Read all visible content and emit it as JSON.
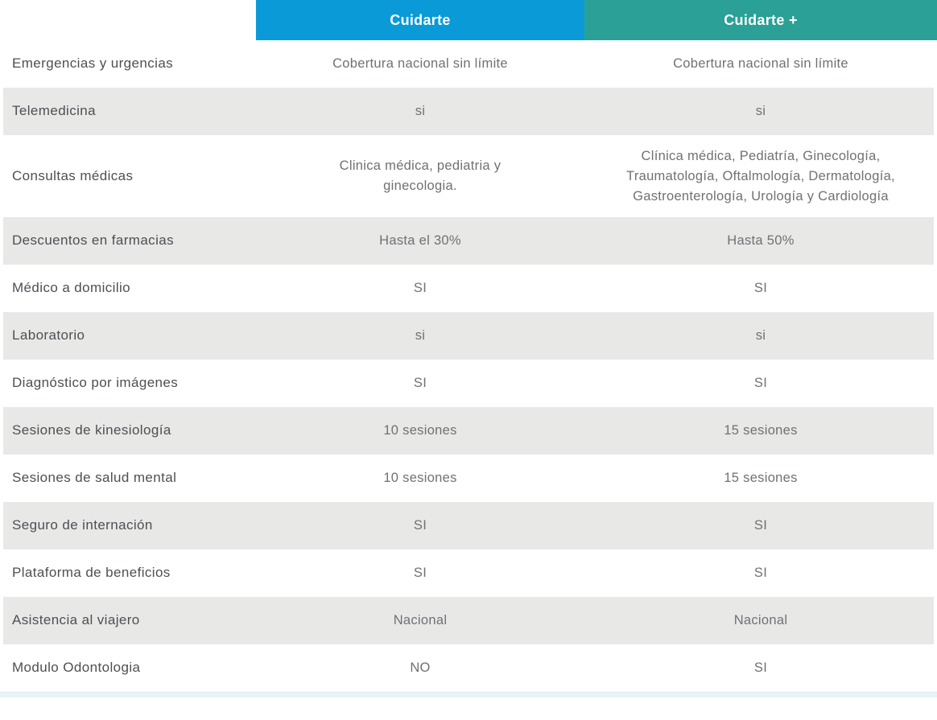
{
  "colors": {
    "cuidarte_header_bg": "#0a9ad8",
    "cuidarte_plus_header_bg": "#2aa096",
    "header_text": "#ffffff",
    "row_alt_bg": "#e8e8e7",
    "label_text": "#4e4f54",
    "value_text": "#6f7175",
    "bottom_strip_bg": "#e9f3fa"
  },
  "table": {
    "columns": [
      {
        "label": "Cuidarte",
        "color": "#0a9ad8"
      },
      {
        "label": "Cuidarte +",
        "color": "#2aa096"
      }
    ],
    "rows": [
      {
        "feature": "Emergencias y urgencias",
        "cuidarte": "Cobertura nacional sin límite",
        "cuidarte_plus": "Cobertura nacional sin límite"
      },
      {
        "feature": "Telemedicina",
        "cuidarte": "si",
        "cuidarte_plus": "si"
      },
      {
        "feature": "Consultas médicas",
        "cuidarte": "Clinica médica, pediatria y ginecologia.",
        "cuidarte_plus": "Clínica médica, Pediatría, Ginecología, Traumatología, Oftalmología, Dermatología, Gastroenterología, Urología y Cardiología"
      },
      {
        "feature": "Descuentos en farmacias",
        "cuidarte": "Hasta el 30%",
        "cuidarte_plus": "Hasta 50%"
      },
      {
        "feature": "Médico a domicilio",
        "cuidarte": "SI",
        "cuidarte_plus": "SI"
      },
      {
        "feature": "Laboratorio",
        "cuidarte": "si",
        "cuidarte_plus": "si"
      },
      {
        "feature": "Diagnóstico por imágenes",
        "cuidarte": "SI",
        "cuidarte_plus": "SI"
      },
      {
        "feature": "Sesiones de kinesiología",
        "cuidarte": "10 sesiones",
        "cuidarte_plus": "15 sesiones"
      },
      {
        "feature": "Sesiones de salud mental",
        "cuidarte": "10 sesiones",
        "cuidarte_plus": "15 sesiones"
      },
      {
        "feature": "Seguro de internación",
        "cuidarte": "SI",
        "cuidarte_plus": "SI"
      },
      {
        "feature": "Plataforma de beneficios",
        "cuidarte": "SI",
        "cuidarte_plus": "SI"
      },
      {
        "feature": "Asistencia al viajero",
        "cuidarte": "Nacional",
        "cuidarte_plus": "Nacional"
      },
      {
        "feature": "Modulo Odontologia",
        "cuidarte": "NO",
        "cuidarte_plus": "SI"
      }
    ]
  }
}
